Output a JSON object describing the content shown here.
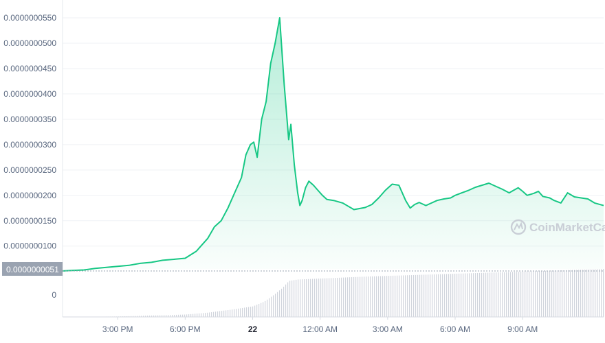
{
  "chart_data": {
    "type": "area",
    "y_ticks": [
      "0.0000000550",
      "0.0000000500",
      "0.0000000450",
      "0.0000000400",
      "0.0000000350",
      "0.0000000300",
      "0.0000000250",
      "0.0000000200",
      "0.0000000150",
      "0.0000000100"
    ],
    "y_tick_values": [
      5.5e-08,
      5e-08,
      4.5e-08,
      4e-08,
      3.5e-08,
      3e-08,
      2.5e-08,
      2e-08,
      1.5e-08,
      1e-08
    ],
    "ylim": [
      5.5e-09,
      5.5e-08
    ],
    "volume_zero_label": "0",
    "current_price_label": "0.0000000051",
    "current_price_value": 5.1e-09,
    "x_ticks": [
      "3:00 PM",
      "6:00 PM",
      "22",
      "12:00 AM",
      "3:00 AM",
      "6:00 AM",
      "9:00 AM"
    ],
    "x_tick_times": [
      15.0,
      18.0,
      21.0,
      24.0,
      27.0,
      30.0,
      33.0
    ],
    "x_tick_bold": [
      false,
      false,
      true,
      false,
      false,
      false,
      false
    ],
    "xlim": [
      12.55,
      36.6
    ],
    "watermark": "CoinMarketCap",
    "colors": {
      "line": "#16c784",
      "fill_top": "#16c784",
      "grid": "#eff2f5",
      "axis_text": "#58667e",
      "badge": "#9aa3b1",
      "volume": "#d0d4dc"
    },
    "series": [
      {
        "x": [
          12.55,
          13.0,
          13.5,
          14.0,
          14.5,
          15.0,
          15.5,
          16.0,
          16.5,
          17.0,
          17.5,
          18.0,
          18.5,
          18.7,
          19.0,
          19.3,
          19.6,
          19.9,
          20.2,
          20.5,
          20.7,
          20.9,
          21.05,
          21.2,
          21.4,
          21.6,
          21.8,
          22.0,
          22.2,
          22.4,
          22.6,
          22.7,
          22.85,
          23.0,
          23.1,
          23.2,
          23.35,
          23.5,
          23.7,
          23.9,
          24.1,
          24.3,
          24.6,
          25.0,
          25.5,
          26.0,
          26.3,
          26.6,
          26.9,
          27.2,
          27.5,
          27.8,
          28.0,
          28.2,
          28.4,
          28.7,
          28.9,
          29.2,
          29.5,
          29.8,
          30.0,
          30.3,
          30.6,
          30.9,
          31.2,
          31.5,
          31.8,
          32.1,
          32.4,
          32.6,
          32.8,
          33.0,
          33.2,
          33.5,
          33.7,
          33.9,
          34.2,
          34.4,
          34.7,
          35.0,
          35.3,
          35.6,
          35.9,
          36.2,
          36.6
        ],
        "y": [
          5.1e-09,
          5.2e-09,
          5.3e-09,
          5.6e-09,
          5.8e-09,
          6e-09,
          6.2e-09,
          6.6e-09,
          6.8e-09,
          7.2e-09,
          7.4e-09,
          7.6e-09,
          9e-09,
          1e-08,
          1.15e-08,
          1.38e-08,
          1.5e-08,
          1.75e-08,
          2.05e-08,
          2.35e-08,
          2.8e-08,
          3e-08,
          3.05e-08,
          2.75e-08,
          3.5e-08,
          3.85e-08,
          4.6e-08,
          5e-08,
          5.5e-08,
          4.2e-08,
          3.1e-08,
          3.4e-08,
          2.6e-08,
          2.05e-08,
          1.8e-08,
          1.9e-08,
          2.15e-08,
          2.28e-08,
          2.2e-08,
          2.1e-08,
          2e-08,
          1.92e-08,
          1.9e-08,
          1.85e-08,
          1.72e-08,
          1.76e-08,
          1.82e-08,
          1.95e-08,
          2.1e-08,
          2.22e-08,
          2.2e-08,
          1.9e-08,
          1.75e-08,
          1.82e-08,
          1.86e-08,
          1.8e-08,
          1.84e-08,
          1.9e-08,
          1.93e-08,
          1.95e-08,
          2e-08,
          2.05e-08,
          2.1e-08,
          2.16e-08,
          2.2e-08,
          2.24e-08,
          2.18e-08,
          2.12e-08,
          2.05e-08,
          2.1e-08,
          2.15e-08,
          2.08e-08,
          2e-08,
          2.04e-08,
          2.08e-08,
          1.98e-08,
          1.95e-08,
          1.9e-08,
          1.85e-08,
          2.05e-08,
          1.97e-08,
          1.95e-08,
          1.93e-08,
          1.85e-08,
          1.8e-08
        ]
      }
    ],
    "volume": {
      "x": [
        12.55,
        15.0,
        18.0,
        19.0,
        20.0,
        21.0,
        21.5,
        21.9,
        22.3,
        22.6,
        23.0,
        24.0,
        26.0,
        28.0,
        30.0,
        32.0,
        34.0,
        36.6
      ],
      "v": [
        0.0,
        0.01,
        0.05,
        0.09,
        0.15,
        0.22,
        0.32,
        0.45,
        0.6,
        0.75,
        0.78,
        0.8,
        0.84,
        0.87,
        0.9,
        0.93,
        0.96,
        1.0
      ]
    }
  }
}
